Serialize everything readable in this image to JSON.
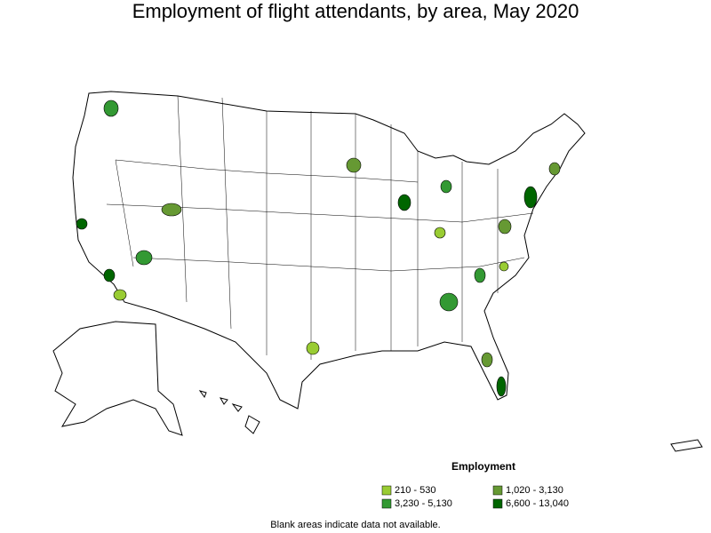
{
  "title": "Employment of flight attendants, by area, May 2020",
  "legend": {
    "title": "Employment",
    "items": [
      {
        "label": "210 - 530",
        "color": "#99cc33"
      },
      {
        "label": "1,020 - 3,130",
        "color": "#669933"
      },
      {
        "label": "3,230 - 5,130",
        "color": "#339933"
      },
      {
        "label": "6,600 - 13,040",
        "color": "#006600"
      }
    ]
  },
  "footnote": "Blank areas indicate data not available."
}
